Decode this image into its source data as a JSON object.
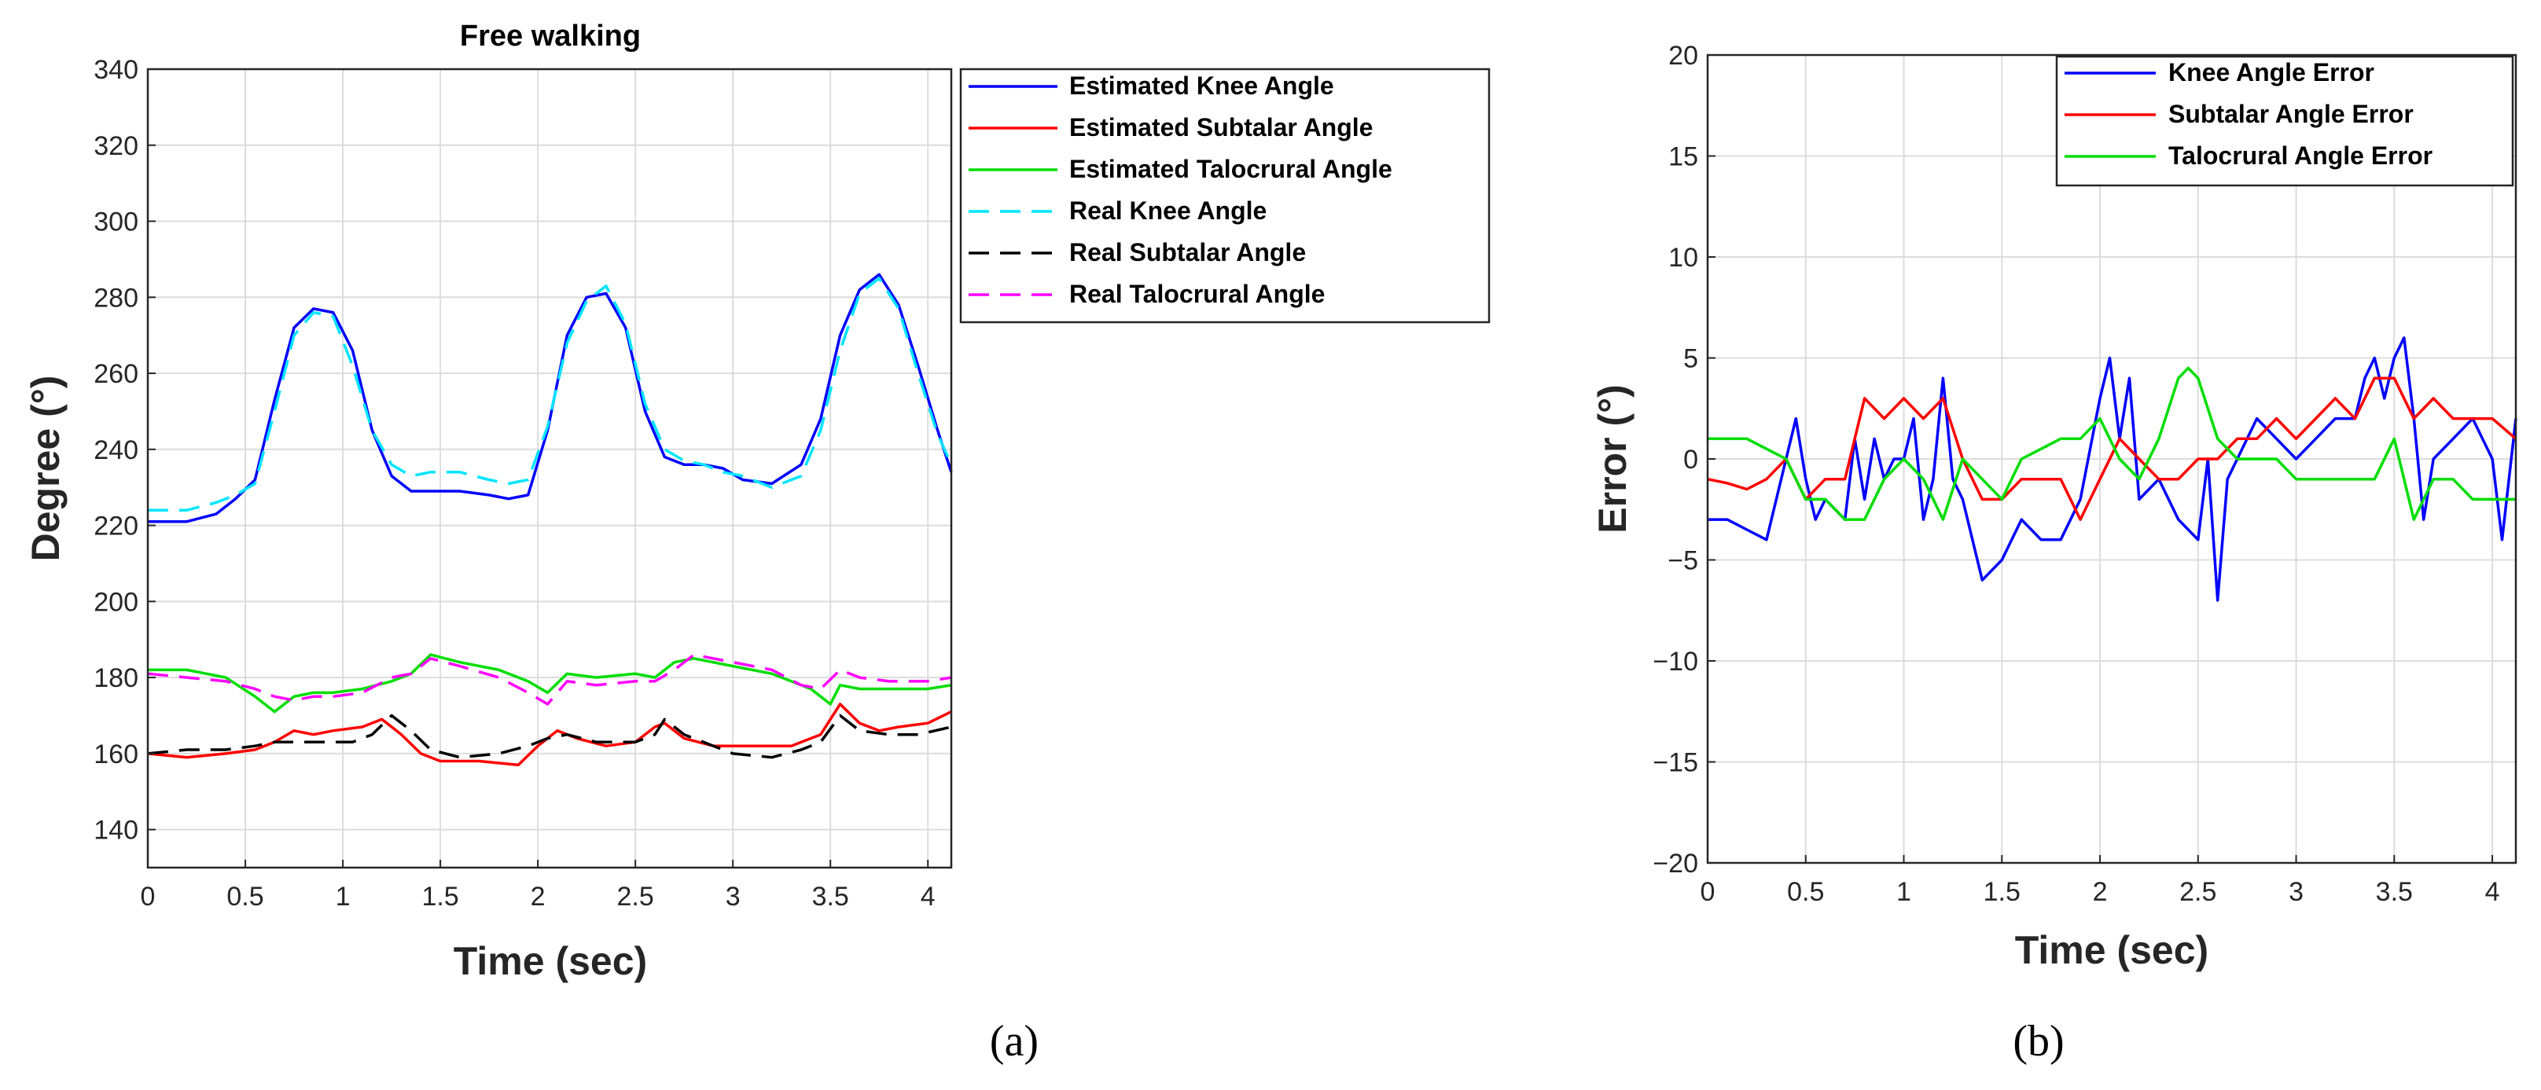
{
  "chart_data": [
    {
      "id": "a",
      "type": "line",
      "title": "Free walking",
      "xlabel": "Time (sec)",
      "ylabel": "Degree (°)",
      "xlim": [
        0,
        4.12
      ],
      "ylim": [
        130,
        340
      ],
      "xticks": [
        0,
        0.5,
        1,
        1.5,
        2,
        2.5,
        3,
        3.5,
        4
      ],
      "xtick_labels": [
        "0",
        "0.5",
        "1",
        "1.5",
        "2",
        "2.5",
        "3",
        "3.5",
        "4"
      ],
      "yticks": [
        140,
        160,
        180,
        200,
        220,
        240,
        260,
        280,
        300,
        320,
        340
      ],
      "ytick_labels": [
        "140",
        "160",
        "180",
        "200",
        "220",
        "240",
        "260",
        "280",
        "300",
        "320",
        "340"
      ],
      "grid": true,
      "legend_position": "outside-right-top",
      "caption": "(a)",
      "series": [
        {
          "name": "Estimated Knee Angle",
          "color": "#0000ff",
          "style": "solid",
          "x": [
            0,
            0.2,
            0.35,
            0.45,
            0.55,
            0.65,
            0.75,
            0.85,
            0.95,
            1.05,
            1.15,
            1.25,
            1.35,
            1.45,
            1.6,
            1.75,
            1.85,
            1.95,
            2.05,
            2.15,
            2.25,
            2.35,
            2.45,
            2.55,
            2.65,
            2.75,
            2.85,
            2.95,
            3.05,
            3.2,
            3.35,
            3.45,
            3.55,
            3.65,
            3.75,
            3.85,
            3.95,
            4.05,
            4.12
          ],
          "y": [
            221,
            221,
            223,
            227,
            232,
            253,
            272,
            277,
            276,
            266,
            245,
            233,
            229,
            229,
            229,
            228,
            227,
            228,
            245,
            270,
            280,
            281,
            272,
            250,
            238,
            236,
            236,
            235,
            232,
            231,
            236,
            248,
            270,
            282,
            286,
            278,
            262,
            245,
            234
          ]
        },
        {
          "name": "Estimated Subtalar Angle",
          "color": "#ff0000",
          "style": "solid",
          "x": [
            0,
            0.2,
            0.4,
            0.55,
            0.65,
            0.75,
            0.85,
            0.95,
            1.1,
            1.2,
            1.3,
            1.4,
            1.5,
            1.7,
            1.9,
            2.0,
            2.1,
            2.2,
            2.35,
            2.5,
            2.6,
            2.65,
            2.75,
            2.9,
            3.1,
            3.3,
            3.45,
            3.55,
            3.65,
            3.75,
            3.85,
            4.0,
            4.12
          ],
          "y": [
            160,
            159,
            160,
            161,
            163,
            166,
            165,
            166,
            167,
            169,
            165,
            160,
            158,
            158,
            157,
            162,
            166,
            164,
            162,
            163,
            167,
            168,
            164,
            162,
            162,
            162,
            165,
            173,
            168,
            166,
            167,
            168,
            171
          ]
        },
        {
          "name": "Estimated Talocrural Angle",
          "color": "#00dd00",
          "style": "solid",
          "x": [
            0,
            0.2,
            0.4,
            0.55,
            0.65,
            0.75,
            0.85,
            0.95,
            1.1,
            1.25,
            1.35,
            1.45,
            1.6,
            1.8,
            1.95,
            2.05,
            2.15,
            2.3,
            2.5,
            2.6,
            2.7,
            2.8,
            3.0,
            3.2,
            3.4,
            3.5,
            3.55,
            3.65,
            3.8,
            4.0,
            4.12
          ],
          "y": [
            182,
            182,
            180,
            175,
            171,
            175,
            176,
            176,
            177,
            179,
            181,
            186,
            184,
            182,
            179,
            176,
            181,
            180,
            181,
            180,
            184,
            185,
            183,
            181,
            177,
            173,
            178,
            177,
            177,
            177,
            178
          ]
        },
        {
          "name": "Real Knee Angle",
          "color": "#00e5ff",
          "style": "dashed",
          "x": [
            0,
            0.2,
            0.35,
            0.45,
            0.55,
            0.65,
            0.75,
            0.85,
            0.95,
            1.05,
            1.15,
            1.25,
            1.35,
            1.45,
            1.6,
            1.75,
            1.85,
            1.95,
            2.05,
            2.15,
            2.25,
            2.35,
            2.45,
            2.55,
            2.65,
            2.75,
            2.85,
            2.95,
            3.05,
            3.2,
            3.35,
            3.45,
            3.55,
            3.65,
            3.75,
            3.85,
            3.95,
            4.05,
            4.12
          ],
          "y": [
            224,
            224,
            226,
            228,
            231,
            250,
            270,
            276,
            275,
            262,
            245,
            236,
            233,
            234,
            234,
            232,
            231,
            232,
            246,
            268,
            279,
            283,
            273,
            252,
            240,
            237,
            236,
            234,
            233,
            230,
            233,
            245,
            266,
            281,
            285,
            277,
            260,
            244,
            236
          ]
        },
        {
          "name": "Real Subtalar Angle",
          "color": "#000000",
          "style": "dashed",
          "x": [
            0,
            0.2,
            0.4,
            0.55,
            0.65,
            0.75,
            0.9,
            1.05,
            1.15,
            1.25,
            1.35,
            1.45,
            1.6,
            1.8,
            1.95,
            2.05,
            2.15,
            2.3,
            2.5,
            2.6,
            2.65,
            2.75,
            2.9,
            3.0,
            3.2,
            3.35,
            3.45,
            3.55,
            3.65,
            3.8,
            3.95,
            4.12
          ],
          "y": [
            160,
            161,
            161,
            162,
            163,
            163,
            163,
            163,
            165,
            170,
            166,
            161,
            159,
            160,
            162,
            164,
            165,
            163,
            163,
            165,
            169,
            165,
            162,
            160,
            159,
            161,
            163,
            170,
            166,
            165,
            165,
            167
          ]
        },
        {
          "name": "Real Talocrural Angle",
          "color": "#ff00ff",
          "style": "dashed",
          "x": [
            0,
            0.2,
            0.4,
            0.55,
            0.65,
            0.75,
            0.85,
            0.95,
            1.1,
            1.25,
            1.35,
            1.45,
            1.6,
            1.8,
            1.95,
            2.05,
            2.15,
            2.3,
            2.5,
            2.6,
            2.7,
            2.8,
            3.0,
            3.2,
            3.35,
            3.45,
            3.55,
            3.65,
            3.8,
            4.0,
            4.12
          ],
          "y": [
            181,
            180,
            179,
            177,
            175,
            174,
            175,
            175,
            176,
            180,
            181,
            185,
            183,
            180,
            176,
            173,
            179,
            178,
            179,
            179,
            182,
            186,
            184,
            182,
            178,
            177,
            182,
            180,
            179,
            179,
            180
          ]
        }
      ]
    },
    {
      "id": "b",
      "type": "line",
      "title": "",
      "xlabel": "Time (sec)",
      "ylabel": "Error (°)",
      "xlim": [
        0,
        4.12
      ],
      "ylim": [
        -20,
        20
      ],
      "xticks": [
        0,
        0.5,
        1,
        1.5,
        2,
        2.5,
        3,
        3.5,
        4
      ],
      "xtick_labels": [
        "0",
        "0.5",
        "1",
        "1.5",
        "2",
        "2.5",
        "3",
        "3.5",
        "4"
      ],
      "yticks": [
        -20,
        -15,
        -10,
        -5,
        0,
        5,
        10,
        15,
        20
      ],
      "ytick_labels": [
        "−20",
        "−15",
        "−10",
        "−5",
        "0",
        "5",
        "10",
        "15",
        "20"
      ],
      "grid": true,
      "legend_position": "top-right",
      "caption": "(b)",
      "series": [
        {
          "name": "Knee Angle Error",
          "color": "#0000ff",
          "style": "solid",
          "x": [
            0,
            0.1,
            0.2,
            0.3,
            0.4,
            0.45,
            0.5,
            0.55,
            0.6,
            0.7,
            0.75,
            0.8,
            0.85,
            0.9,
            0.95,
            1.0,
            1.05,
            1.1,
            1.15,
            1.2,
            1.25,
            1.3,
            1.4,
            1.5,
            1.6,
            1.7,
            1.8,
            1.9,
            2.0,
            2.05,
            2.1,
            2.15,
            2.2,
            2.3,
            2.4,
            2.5,
            2.55,
            2.6,
            2.65,
            2.7,
            2.8,
            2.9,
            3.0,
            3.1,
            3.2,
            3.3,
            3.35,
            3.4,
            3.45,
            3.5,
            3.55,
            3.6,
            3.65,
            3.7,
            3.8,
            3.9,
            4.0,
            4.05,
            4.12
          ],
          "y": [
            -3,
            -3,
            -3.5,
            -4,
            0,
            2,
            -1,
            -3,
            -2,
            -3,
            1,
            -2,
            1,
            -1,
            0,
            0,
            2,
            -3,
            -1,
            4,
            -1,
            -2,
            -6,
            -5,
            -3,
            -4,
            -4,
            -2,
            3,
            5,
            1,
            4,
            -2,
            -1,
            -3,
            -4,
            0,
            -7,
            -1,
            0,
            2,
            1,
            0,
            1,
            2,
            2,
            4,
            5,
            3,
            5,
            6,
            2,
            -3,
            0,
            1,
            2,
            0,
            -4,
            2
          ]
        },
        {
          "name": "Subtalar Angle Error",
          "color": "#ff0000",
          "style": "solid",
          "x": [
            0,
            0.1,
            0.2,
            0.3,
            0.4,
            0.5,
            0.6,
            0.7,
            0.8,
            0.9,
            1.0,
            1.1,
            1.2,
            1.3,
            1.4,
            1.5,
            1.6,
            1.7,
            1.8,
            1.9,
            2.0,
            2.1,
            2.2,
            2.3,
            2.4,
            2.5,
            2.6,
            2.7,
            2.8,
            2.9,
            3.0,
            3.1,
            3.2,
            3.3,
            3.4,
            3.5,
            3.6,
            3.7,
            3.8,
            3.9,
            4.0,
            4.12
          ],
          "y": [
            -1,
            -1.2,
            -1.5,
            -1,
            0,
            -2,
            -1,
            -1,
            3,
            2,
            3,
            2,
            3,
            0,
            -2,
            -2,
            -1,
            -1,
            -1,
            -3,
            -1,
            1,
            0,
            -1,
            -1,
            0,
            0,
            1,
            1,
            2,
            1,
            2,
            3,
            2,
            4,
            4,
            2,
            3,
            2,
            2,
            2,
            1
          ]
        },
        {
          "name": "Talocrural Angle Error",
          "color": "#00dd00",
          "style": "solid",
          "x": [
            0,
            0.1,
            0.2,
            0.3,
            0.4,
            0.5,
            0.6,
            0.7,
            0.8,
            0.9,
            1.0,
            1.1,
            1.2,
            1.3,
            1.4,
            1.5,
            1.6,
            1.7,
            1.8,
            1.9,
            2.0,
            2.1,
            2.2,
            2.3,
            2.4,
            2.45,
            2.5,
            2.6,
            2.7,
            2.8,
            2.9,
            3.0,
            3.1,
            3.2,
            3.3,
            3.4,
            3.5,
            3.6,
            3.7,
            3.8,
            3.9,
            4.0,
            4.12
          ],
          "y": [
            1,
            1,
            1,
            0.5,
            0,
            -2,
            -2,
            -3,
            -3,
            -1,
            0,
            -1,
            -3,
            0,
            -1,
            -2,
            0,
            0.5,
            1,
            1,
            2,
            0,
            -1,
            1,
            4,
            4.5,
            4,
            1,
            0,
            0,
            0,
            -1,
            -1,
            -1,
            -1,
            -1,
            1,
            -3,
            -1,
            -1,
            -2,
            -2,
            -2
          ]
        }
      ]
    }
  ]
}
